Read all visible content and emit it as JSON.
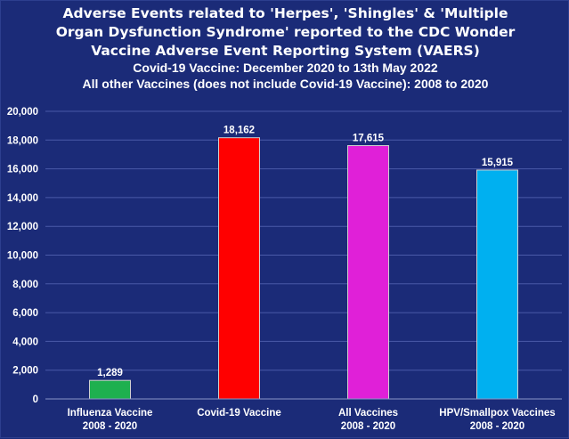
{
  "chart_data": {
    "type": "bar",
    "title_lines": [
      "Adverse Events related to 'Herpes', 'Shingles' & 'Multiple",
      "Organ Dysfunction Syndrome' reported to the CDC Wonder",
      "Vaccine Adverse Event Reporting System  (VAERS)"
    ],
    "subtitle_lines": [
      "Covid-19 Vaccine: December 2020 to 13th May 2022",
      "All other Vaccines (does not include Covid-19 Vaccine): 2008 to 2020"
    ],
    "categories": [
      [
        "Influenza Vaccine",
        "2008 - 2020"
      ],
      [
        "Covid-19 Vaccine"
      ],
      [
        "All Vaccines",
        "2008 - 2020"
      ],
      [
        "HPV/Smallpox Vaccines",
        "2008 - 2020"
      ]
    ],
    "values": [
      1289,
      18162,
      17615,
      15915
    ],
    "value_labels": [
      "1,289",
      "18,162",
      "17,615",
      "15,915"
    ],
    "colors": [
      "#1eb04f",
      "#ff0000",
      "#e020d8",
      "#00b0f0"
    ],
    "ylim": [
      0,
      20000
    ],
    "yticks": [
      0,
      2000,
      4000,
      6000,
      8000,
      10000,
      12000,
      14000,
      16000,
      18000,
      20000
    ],
    "ytick_labels": [
      "0",
      "2,000",
      "4,000",
      "6,000",
      "8,000",
      "10,000",
      "12,000",
      "14,000",
      "16,000",
      "18,000",
      "20,000"
    ],
    "grid": true,
    "xlabel": "",
    "ylabel": ""
  }
}
